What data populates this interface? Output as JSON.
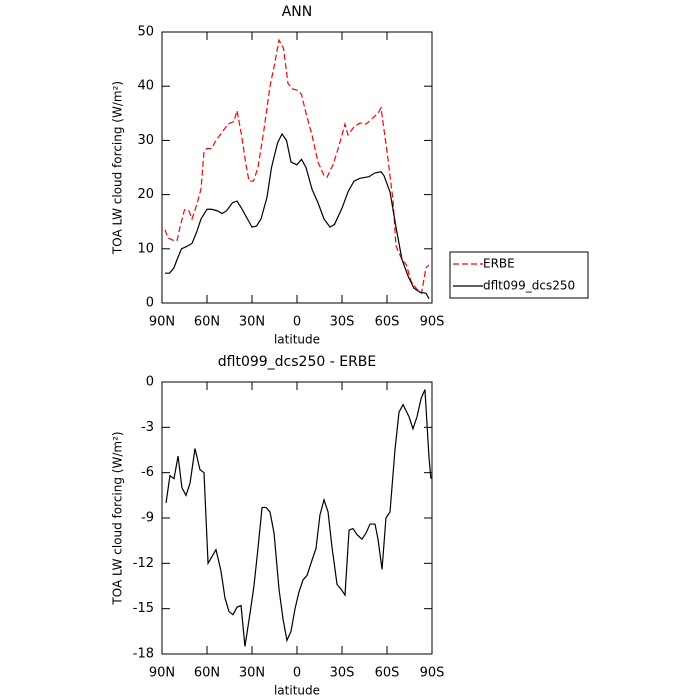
{
  "chart_data": [
    {
      "type": "line",
      "title": "ANN",
      "xlabel": "latitude",
      "ylabel": "TOA LW cloud forcing (W/m²)",
      "xlim": [
        90,
        -90
      ],
      "xticks": [
        {
          "value": 90,
          "label": "90N"
        },
        {
          "value": 60,
          "label": "60N"
        },
        {
          "value": 30,
          "label": "30N"
        },
        0,
        {
          "value": -30,
          "label": "30S"
        },
        {
          "value": -60,
          "label": "60S"
        },
        {
          "value": -90,
          "label": "90S"
        }
      ],
      "ylim": [
        0,
        50
      ],
      "yticks": [
        0,
        10,
        20,
        30,
        40,
        50
      ],
      "legend": "right",
      "series": [
        {
          "name": "ERBE",
          "color": "#ff0000",
          "linestyle": "dashed",
          "x": [
            88,
            86,
            82,
            80,
            78,
            75,
            72,
            70,
            67,
            64,
            62,
            60,
            57,
            54,
            50,
            46,
            42,
            40,
            37,
            34,
            32,
            29,
            26,
            22,
            18,
            15,
            12,
            9,
            6,
            3,
            0,
            -3,
            -6,
            -10,
            -14,
            -18,
            -20,
            -24,
            -28,
            -32,
            -34,
            -38,
            -42,
            -46,
            -50,
            -54,
            -56,
            -60,
            -64,
            -66,
            -70,
            -73,
            -76,
            -80,
            -83,
            -86,
            -88
          ],
          "values": [
            13.5,
            12,
            11.5,
            11.5,
            14,
            17.2,
            17,
            15.5,
            18,
            21,
            28,
            28.5,
            28.5,
            30,
            31.5,
            33,
            33.5,
            35.5,
            31,
            25.5,
            22.5,
            22.5,
            25,
            32,
            40,
            44,
            48.5,
            47,
            40.5,
            39.5,
            39.3,
            38.5,
            35,
            31,
            26,
            23.5,
            23.2,
            25.5,
            29,
            33,
            31,
            32.5,
            33.2,
            33,
            34,
            35,
            36,
            28,
            19,
            10.5,
            8,
            7,
            4,
            2.5,
            1.8,
            6.5,
            7
          ]
        },
        {
          "name": "dflt099_dcs250",
          "color": "#000000",
          "linestyle": "solid",
          "x": [
            88,
            85,
            82,
            80,
            77,
            73,
            70,
            67,
            64,
            60,
            57,
            53,
            50,
            47,
            43,
            40,
            37,
            33,
            30,
            27,
            24,
            20,
            17,
            13,
            10,
            7,
            4,
            0,
            -3,
            -6,
            -10,
            -14,
            -18,
            -22,
            -25,
            -30,
            -34,
            -38,
            -42,
            -48,
            -52,
            -56,
            -58,
            -62,
            -66,
            -70,
            -74,
            -78,
            -82,
            -86,
            -88
          ],
          "values": [
            5.5,
            5.5,
            6.5,
            8,
            10,
            10.5,
            11,
            13,
            15.5,
            17.3,
            17.3,
            17,
            16.5,
            17,
            18.5,
            18.8,
            17.5,
            15.5,
            14,
            14.2,
            15.5,
            19.5,
            25,
            29.5,
            31.2,
            30,
            26,
            25.5,
            26.5,
            25,
            21,
            18.5,
            15.5,
            14,
            14.5,
            17.5,
            20.5,
            22.5,
            23,
            23.3,
            24,
            24.2,
            23.5,
            20.5,
            14,
            8,
            5,
            2.7,
            2,
            1.8,
            0.8
          ]
        }
      ]
    },
    {
      "type": "line",
      "title": "dflt099_dcs250 - ERBE",
      "xlabel": "latitude",
      "ylabel": "TOA LW cloud forcing (W/m²)",
      "xlim": [
        90,
        -90
      ],
      "xticks": [
        {
          "value": 90,
          "label": "90N"
        },
        {
          "value": 60,
          "label": "60N"
        },
        {
          "value": 30,
          "label": "30N"
        },
        0,
        {
          "value": -30,
          "label": "30S"
        },
        {
          "value": -60,
          "label": "60S"
        },
        {
          "value": -90,
          "label": "90S"
        }
      ],
      "ylim": [
        -18,
        0
      ],
      "yticks": [
        -18,
        -15,
        -12,
        -9,
        -6,
        -3,
        0
      ],
      "color": "#000000",
      "x": [
        87.3,
        84.7,
        82,
        79.3,
        76.7,
        74,
        71.3,
        68,
        64.7,
        62,
        59.3,
        54,
        50.7,
        48,
        45.3,
        42.7,
        40,
        37.3,
        34.7,
        31.3,
        28.7,
        26,
        23.3,
        20.7,
        18,
        15.3,
        12,
        9.3,
        6.7,
        4,
        1.3,
        -1.3,
        -4,
        -6.7,
        -9.3,
        -12.7,
        -15.3,
        -18,
        -20.7,
        -23.3,
        -26.7,
        -29.3,
        -32,
        -34.7,
        -37.3,
        -40,
        -43.3,
        -46,
        -48.7,
        -52,
        -54,
        -56.7,
        -59.3,
        -62,
        -65.3,
        -68,
        -70.7,
        -74.7,
        -77.3,
        -80,
        -82.7,
        -85.3,
        -88,
        -89.3
      ],
      "values": [
        -8,
        -6.2,
        -6.4,
        -4.9,
        -7,
        -7.5,
        -6.7,
        -4.4,
        -5.8,
        -6,
        -12,
        -11.1,
        -12.5,
        -14.3,
        -15.2,
        -15.4,
        -14.9,
        -14.8,
        -17.5,
        -15.3,
        -13.5,
        -11,
        -8.3,
        -8.3,
        -8.6,
        -10,
        -13.7,
        -15.7,
        -17.1,
        -16.5,
        -15,
        -13.9,
        -13.1,
        -12.8,
        -12,
        -11,
        -8.8,
        -7.8,
        -8.6,
        -10.9,
        -13.4,
        -13.7,
        -14.1,
        -9.8,
        -9.7,
        -10.1,
        -10.4,
        -10,
        -9.4,
        -9.4,
        -10.4,
        -12.4,
        -9,
        -8.6,
        -4.5,
        -2,
        -1.5,
        -2.3,
        -3.1,
        -2.3,
        -1.1,
        -0.5,
        -5,
        -6.4
      ]
    }
  ]
}
